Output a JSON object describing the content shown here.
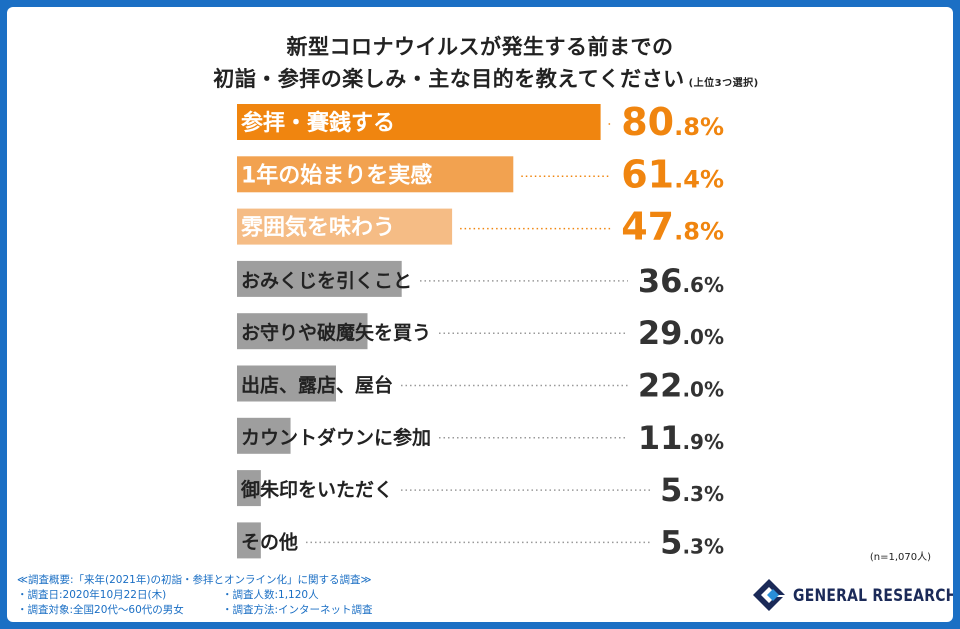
{
  "header": {
    "title_line1": "新型コロナウイルスが発生する前までの",
    "title_line2": "初詣・参拝の楽しみ・主な目的を教えてください",
    "title_note": "(上位3つ選択)"
  },
  "chart_data": {
    "type": "bar",
    "orientation": "horizontal",
    "categories": [
      "参拝・賽銭する",
      "1年の始まりを実感",
      "雰囲気を味わう",
      "おみくじを引くこと",
      "お守りや破魔矢を買う",
      "出店、露店、屋台",
      "カウントダウンに参加",
      "御朱印をいただく",
      "その他"
    ],
    "values": [
      80.8,
      61.4,
      47.8,
      36.6,
      29.0,
      22.0,
      11.9,
      5.3,
      5.3
    ],
    "value_int_labels": [
      "80",
      "61",
      "47",
      "36",
      "29",
      "22",
      "11",
      "5",
      "5"
    ],
    "value_dec_labels": [
      ".8%",
      ".4%",
      ".8%",
      ".6%",
      ".0%",
      ".0%",
      ".9%",
      ".3%",
      ".3%"
    ],
    "xlim": [
      0,
      100
    ],
    "unit": "%",
    "colors": [
      "#f0850f",
      "#f2a250",
      "#f5bc85",
      "#9e9e9e",
      "#9e9e9e",
      "#9e9e9e",
      "#9e9e9e",
      "#9e9e9e",
      "#9e9e9e"
    ]
  },
  "sample_note": "(n=1,070人)",
  "footer": {
    "summary": "≪調査概要:「来年(2021年)の初詣・参拝とオンライン化」に関する調査≫",
    "date": "・調査日:2020年10月22日(木)",
    "count": "・調査人数:1,120人",
    "target": "・調査対象:全国20代〜60代の男女",
    "method": "・調査方法:インターネット調査"
  },
  "brand": {
    "name": "GENERAL RESEARCH",
    "color": "#1b2a58"
  }
}
